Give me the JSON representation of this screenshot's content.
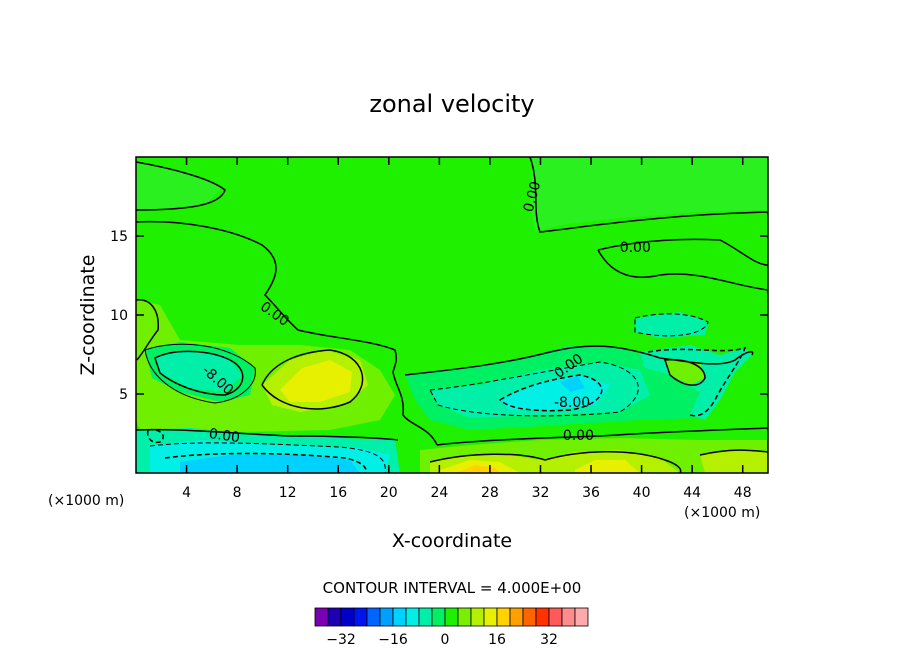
{
  "chart_data": {
    "type": "contour",
    "title": "zonal velocity",
    "xlabel": "X-coordinate",
    "ylabel": "Z-coordinate",
    "x_unit_label": "(×1000 m)",
    "x_unit_label_right": "(×1000 m)",
    "xlim": [
      0,
      50
    ],
    "ylim": [
      0,
      20
    ],
    "x_ticks": [
      4,
      8,
      12,
      16,
      20,
      24,
      28,
      32,
      36,
      40,
      44,
      48
    ],
    "y_ticks": [
      5,
      10,
      15
    ],
    "contour_interval_text": "CONTOUR INTERVAL = 4.000E+00",
    "contour_labels": [
      {
        "text": "0.00",
        "x": 31.3,
        "y": 17.5,
        "angle": -75
      },
      {
        "text": "0.00",
        "x": 39.5,
        "y": 14.3,
        "angle": 0
      },
      {
        "text": "0.00",
        "x": 11.0,
        "y": 10.1,
        "angle": 35
      },
      {
        "text": "-8.00",
        "x": 6.5,
        "y": 5.9,
        "angle": 42
      },
      {
        "text": "0.00",
        "x": 7.0,
        "y": 2.4,
        "angle": 8
      },
      {
        "text": "0.00",
        "x": 34.2,
        "y": 6.8,
        "angle": -35
      },
      {
        "text": "-8.00",
        "x": 34.5,
        "y": 4.5,
        "angle": 0
      },
      {
        "text": "0.00",
        "x": 35.0,
        "y": 2.4,
        "angle": 0
      }
    ],
    "colorbar": {
      "colors": [
        "#7a00b4",
        "#1e00b4",
        "#0000c8",
        "#0014f0",
        "#0064ff",
        "#00a0ff",
        "#00d2ff",
        "#00f0e6",
        "#00f0aa",
        "#00f064",
        "#1ef000",
        "#78f000",
        "#b4f000",
        "#e6f000",
        "#ffd200",
        "#ffa000",
        "#ff6400",
        "#ff3200",
        "#ff5a5a",
        "#ff8c8c",
        "#ffaaaa"
      ],
      "tick_labels": [
        "-32",
        "-16",
        "0",
        "16",
        "32"
      ],
      "tick_values": [
        -32,
        -16,
        0,
        16,
        32
      ]
    }
  }
}
